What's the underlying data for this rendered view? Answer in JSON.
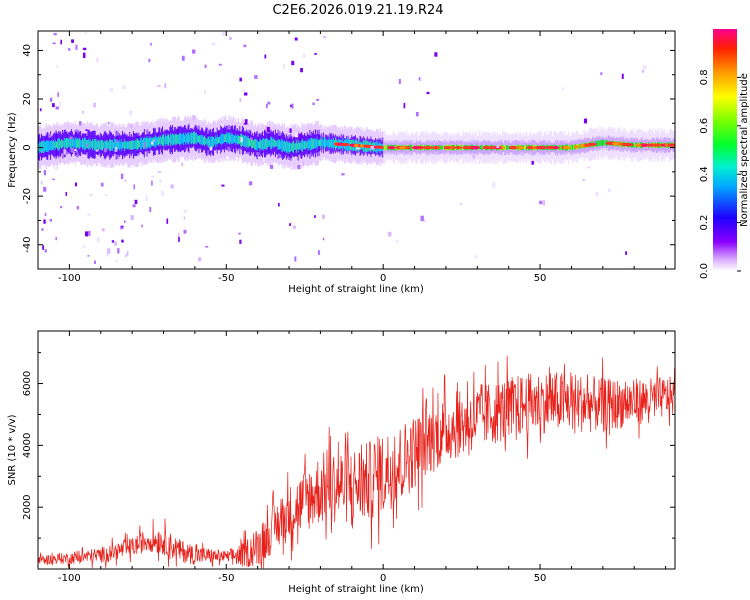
{
  "title": "C2E6.2026.019.21.19.R24",
  "chart_data": [
    {
      "type": "heatmap",
      "xlabel": "Height of straight line (km)",
      "ylabel": "Frequency (Hz)",
      "xlim": [
        -110,
        93
      ],
      "ylim": [
        -50,
        48
      ],
      "xticks": [
        -100,
        -50,
        0,
        50
      ],
      "yticks": [
        -40,
        -20,
        0,
        20,
        40
      ],
      "colorbar": {
        "label": "Normalized spectral amplitude",
        "range": [
          0,
          1
        ],
        "ticks": [
          "0.0",
          "0.2",
          "0.4",
          "0.6",
          "0.8"
        ]
      },
      "ridge": [
        {
          "x": -110,
          "y": 0
        },
        {
          "x": -100,
          "y": 2
        },
        {
          "x": -90,
          "y": 1
        },
        {
          "x": -80,
          "y": 1
        },
        {
          "x": -70,
          "y": 3
        },
        {
          "x": -60,
          "y": 4
        },
        {
          "x": -55,
          "y": 2
        },
        {
          "x": -50,
          "y": 4
        },
        {
          "x": -45,
          "y": 3
        },
        {
          "x": -40,
          "y": 1
        },
        {
          "x": -35,
          "y": 2
        },
        {
          "x": -30,
          "y": 0
        },
        {
          "x": -25,
          "y": 1
        },
        {
          "x": -20,
          "y": 2
        },
        {
          "x": -10,
          "y": 1
        },
        {
          "x": 0,
          "y": 0
        },
        {
          "x": 20,
          "y": 0
        },
        {
          "x": 40,
          "y": 0
        },
        {
          "x": 60,
          "y": 0
        },
        {
          "x": 70,
          "y": 2
        },
        {
          "x": 80,
          "y": 1
        },
        {
          "x": 93,
          "y": 1
        }
      ]
    },
    {
      "type": "line",
      "xlabel": "Height of straight line (km)",
      "ylabel": "SNR (10 * v/v)",
      "xlim": [
        -110,
        93
      ],
      "ylim": [
        0,
        7700
      ],
      "xticks": [
        -100,
        -50,
        0,
        50
      ],
      "yticks": [
        2000,
        4000,
        6000
      ],
      "series": [
        {
          "name": "SNR",
          "color": "#e8201a",
          "trend": [
            {
              "x": -110,
              "y": 300
            },
            {
              "x": -100,
              "y": 350
            },
            {
              "x": -90,
              "y": 450
            },
            {
              "x": -80,
              "y": 700
            },
            {
              "x": -75,
              "y": 950
            },
            {
              "x": -70,
              "y": 900
            },
            {
              "x": -65,
              "y": 600
            },
            {
              "x": -60,
              "y": 450
            },
            {
              "x": -50,
              "y": 400
            },
            {
              "x": -45,
              "y": 450
            },
            {
              "x": -40,
              "y": 700
            },
            {
              "x": -35,
              "y": 1300
            },
            {
              "x": -30,
              "y": 1800
            },
            {
              "x": -25,
              "y": 2200
            },
            {
              "x": -20,
              "y": 2600
            },
            {
              "x": -15,
              "y": 2700
            },
            {
              "x": -10,
              "y": 2700
            },
            {
              "x": -5,
              "y": 2800
            },
            {
              "x": 0,
              "y": 3100
            },
            {
              "x": 5,
              "y": 3400
            },
            {
              "x": 10,
              "y": 3800
            },
            {
              "x": 15,
              "y": 4200
            },
            {
              "x": 20,
              "y": 4500
            },
            {
              "x": 30,
              "y": 4900
            },
            {
              "x": 40,
              "y": 5200
            },
            {
              "x": 50,
              "y": 5400
            },
            {
              "x": 60,
              "y": 5400
            },
            {
              "x": 70,
              "y": 5300
            },
            {
              "x": 80,
              "y": 5400
            },
            {
              "x": 93,
              "y": 5600
            }
          ],
          "noise_amplitude": [
            {
              "x": -110,
              "y": 150
            },
            {
              "x": -80,
              "y": 350
            },
            {
              "x": -70,
              "y": 500
            },
            {
              "x": -50,
              "y": 200
            },
            {
              "x": -40,
              "y": 700
            },
            {
              "x": -20,
              "y": 1300
            },
            {
              "x": 0,
              "y": 1500
            },
            {
              "x": 20,
              "y": 1200
            },
            {
              "x": 60,
              "y": 1100
            },
            {
              "x": 93,
              "y": 700
            }
          ]
        }
      ]
    }
  ]
}
